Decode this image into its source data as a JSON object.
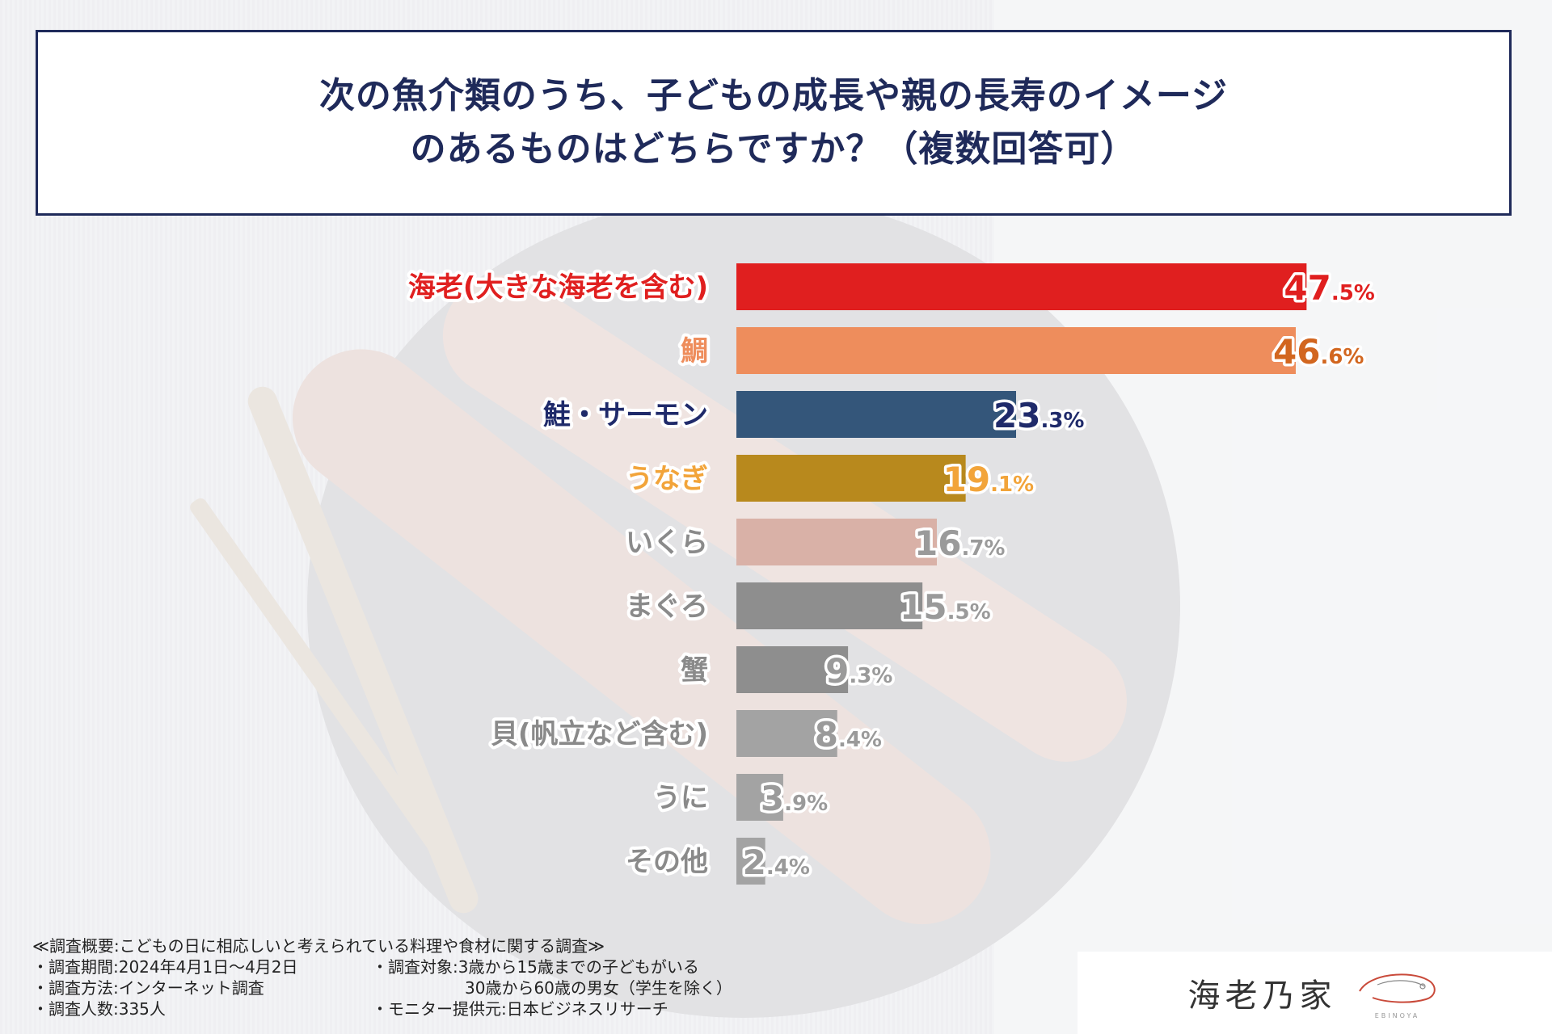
{
  "title": {
    "line1": "次の魚介類のうち、子どもの成長や親の長寿のイメージ",
    "line2": "のあるものはどちらですか？（複数回答可）"
  },
  "chart_data": {
    "type": "bar",
    "orientation": "horizontal",
    "categories": [
      "海老(大きな海老を含む)",
      "鯛",
      "鮭・サーモン",
      "うなぎ",
      "いくら",
      "まぐろ",
      "蟹",
      "貝(帆立など含む)",
      "うに",
      "その他"
    ],
    "values": [
      47.5,
      46.6,
      23.3,
      19.1,
      16.7,
      15.5,
      9.3,
      8.4,
      3.9,
      2.4
    ],
    "value_labels": [
      "47.5%",
      "46.6%",
      "23.3%",
      "19.1%",
      "16.7%",
      "15.5%",
      "9.3%",
      "8.4%",
      "3.9%",
      "2.4%"
    ],
    "bar_colors": [
      "#e01f1f",
      "#ee8d5c",
      "#34567a",
      "#b8891d",
      "#d9b1a7",
      "#8e8e8e",
      "#8e8e8e",
      "#a3a3a3",
      "#a3a3a3",
      "#a3a3a3"
    ],
    "label_colors": [
      "#e01f1f",
      "#ee8d5c",
      "#1f2a6a",
      "#f2a43a",
      "#8a8a8a",
      "#8a8a8a",
      "#8a8a8a",
      "#8a8a8a",
      "#8a8a8a",
      "#8a8a8a"
    ],
    "value_colors": [
      "#e01f1f",
      "#d2661f",
      "#1f2a6a",
      "#f2a43a",
      "#9a9a9a",
      "#9a9a9a",
      "#9a9a9a",
      "#9a9a9a",
      "#9a9a9a",
      "#9a9a9a"
    ],
    "xlim": [
      0,
      50
    ]
  },
  "notes": {
    "heading": "≪調査概要:こどもの日に相応しいと考えられている料理や食材に関する調査≫",
    "period": "・調査期間:2024年4月1日～4月2日",
    "method": "・調査方法:インターネット調査",
    "count": "・調査人数:335人",
    "target": "・調査対象:3歳から15歳までの子どもがいる",
    "target2": "30歳から60歳の男女（学生を除く）",
    "monitor": "・モニター提供元:日本ビジネスリサーチ"
  },
  "logo": {
    "text": "海老乃家",
    "sub": "EBINOYA",
    "icon": "shrimp-logo-icon"
  }
}
